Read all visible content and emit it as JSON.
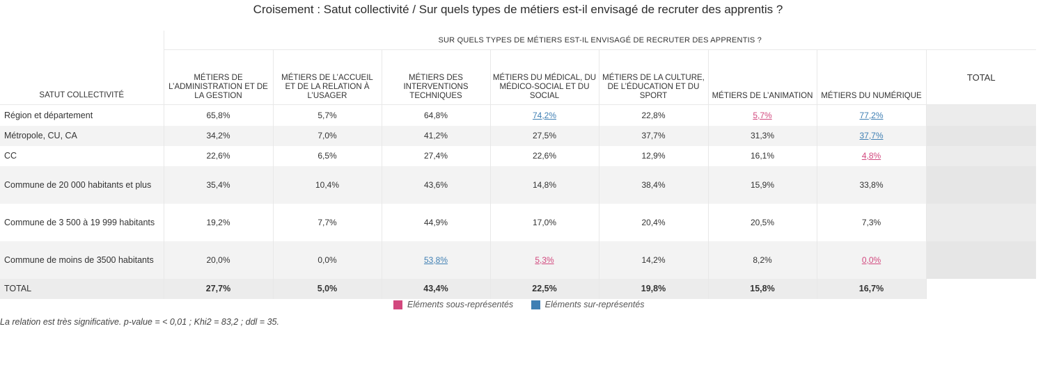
{
  "title": "Croisement : Satut collectivité / Sur quels types de métiers est-il envisagé de recruter des apprentis ?",
  "colors": {
    "over": "#3f7fb3",
    "under": "#d2487e"
  },
  "table": {
    "group_header": "SUR QUELS TYPES DE MÉTIERS EST-IL ENVISAGÉ DE RECRUTER DES APPRENTIS ?",
    "row_header": "SATUT COLLECTIVITÉ",
    "columns": [
      "MÉTIERS DE L’ADMINISTRATION ET DE LA GESTION",
      "MÉTIERS DE L’ACCUEIL ET DE LA RELATION À L’USAGER",
      "MÉTIERS DES INTERVENTIONS TECHNIQUES",
      "MÉTIERS DU MÉDICAL, DU MÉDICO-SOCIAL ET DU SOCIAL",
      "MÉTIERS DE LA CULTURE, DE L’ÉDUCATION ET DU SPORT",
      "MÉTIERS DE L’ANIMATION",
      "MÉTIERS DU NUMÉRIQUE",
      "TOTAL"
    ],
    "rows": [
      {
        "label": "Région et département",
        "cells": [
          {
            "v": "65,8%",
            "s": ""
          },
          {
            "v": "5,7%",
            "s": ""
          },
          {
            "v": "64,8%",
            "s": ""
          },
          {
            "v": "74,2%",
            "s": "over"
          },
          {
            "v": "22,8%",
            "s": ""
          },
          {
            "v": "5,7%",
            "s": "under"
          },
          {
            "v": "77,2%",
            "s": "over"
          },
          {
            "v": "",
            "s": ""
          }
        ]
      },
      {
        "label": "Métropole, CU, CA",
        "cells": [
          {
            "v": "34,2%",
            "s": ""
          },
          {
            "v": "7,0%",
            "s": ""
          },
          {
            "v": "41,2%",
            "s": ""
          },
          {
            "v": "27,5%",
            "s": ""
          },
          {
            "v": "37,7%",
            "s": ""
          },
          {
            "v": "31,3%",
            "s": ""
          },
          {
            "v": "37,7%",
            "s": "over"
          },
          {
            "v": "",
            "s": ""
          }
        ]
      },
      {
        "label": "CC",
        "cells": [
          {
            "v": "22,6%",
            "s": ""
          },
          {
            "v": "6,5%",
            "s": ""
          },
          {
            "v": "27,4%",
            "s": ""
          },
          {
            "v": "22,6%",
            "s": ""
          },
          {
            "v": "12,9%",
            "s": ""
          },
          {
            "v": "16,1%",
            "s": ""
          },
          {
            "v": "4,8%",
            "s": "under"
          },
          {
            "v": "",
            "s": ""
          }
        ]
      },
      {
        "label": "Commune de 20 000 habitants et plus",
        "cells": [
          {
            "v": "35,4%",
            "s": ""
          },
          {
            "v": "10,4%",
            "s": ""
          },
          {
            "v": "43,6%",
            "s": ""
          },
          {
            "v": "14,8%",
            "s": ""
          },
          {
            "v": "38,4%",
            "s": ""
          },
          {
            "v": "15,9%",
            "s": ""
          },
          {
            "v": "33,8%",
            "s": ""
          },
          {
            "v": "",
            "s": ""
          }
        ]
      },
      {
        "label": "Commune de 3 500 à 19 999 habitants",
        "cells": [
          {
            "v": "19,2%",
            "s": ""
          },
          {
            "v": "7,7%",
            "s": ""
          },
          {
            "v": "44,9%",
            "s": ""
          },
          {
            "v": "17,0%",
            "s": ""
          },
          {
            "v": "20,4%",
            "s": ""
          },
          {
            "v": "20,5%",
            "s": ""
          },
          {
            "v": "7,3%",
            "s": ""
          },
          {
            "v": "",
            "s": ""
          }
        ]
      },
      {
        "label": "Commune de moins de 3500 habitants",
        "cells": [
          {
            "v": "20,0%",
            "s": ""
          },
          {
            "v": "0,0%",
            "s": ""
          },
          {
            "v": "53,8%",
            "s": "over"
          },
          {
            "v": "5,3%",
            "s": "under"
          },
          {
            "v": "14,2%",
            "s": ""
          },
          {
            "v": "8,2%",
            "s": ""
          },
          {
            "v": "0,0%",
            "s": "under"
          },
          {
            "v": "",
            "s": ""
          }
        ]
      }
    ],
    "total_row": {
      "label": "TOTAL",
      "cells": [
        "27,7%",
        "5,0%",
        "43,4%",
        "22,5%",
        "19,8%",
        "15,8%",
        "16,7%",
        ""
      ]
    }
  },
  "legend": {
    "under": "Eléments sous-représentés",
    "over": "Eléments sur-représentés"
  },
  "note": "La relation est très significative. p-value = < 0,01 ; Khi2 = 83,2 ; ddl = 35."
}
